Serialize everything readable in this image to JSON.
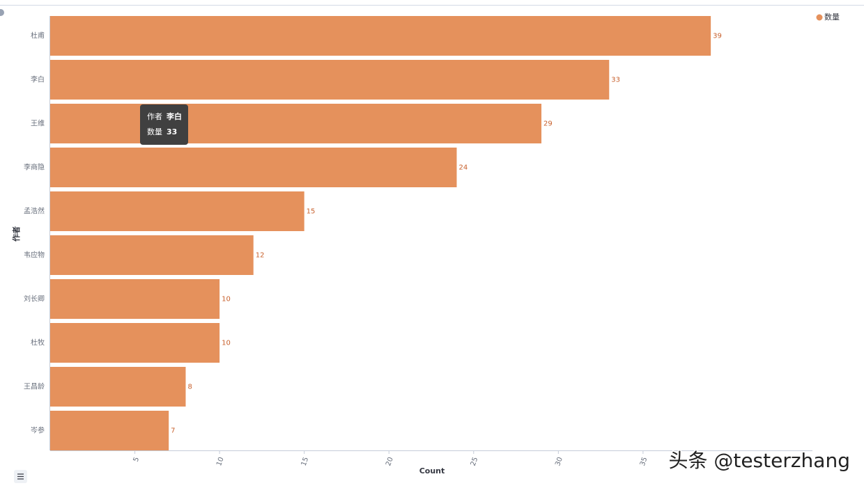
{
  "chart_data": {
    "type": "hbar",
    "categories": [
      "杜甫",
      "李白",
      "王维",
      "李商隐",
      "孟浩然",
      "韦应物",
      "刘长卿",
      "杜牧",
      "王昌龄",
      "岑参"
    ],
    "series": [
      {
        "name": "数量",
        "color": "#e5915c",
        "values": [
          39,
          33,
          29,
          24,
          15,
          12,
          10,
          10,
          8,
          7
        ]
      }
    ],
    "value_label_color": "#c8602c",
    "x_label": "Count",
    "y_label": "作者",
    "xlim": [
      0,
      45
    ],
    "xticks": [
      5,
      10,
      15,
      20,
      25,
      30,
      35
    ],
    "legend": "top-right"
  },
  "tooltip": {
    "rows": [
      {
        "label": "作者",
        "value": "李白"
      },
      {
        "label": "数量",
        "value": "33"
      }
    ]
  },
  "watermark": "头条 @testerzhang"
}
